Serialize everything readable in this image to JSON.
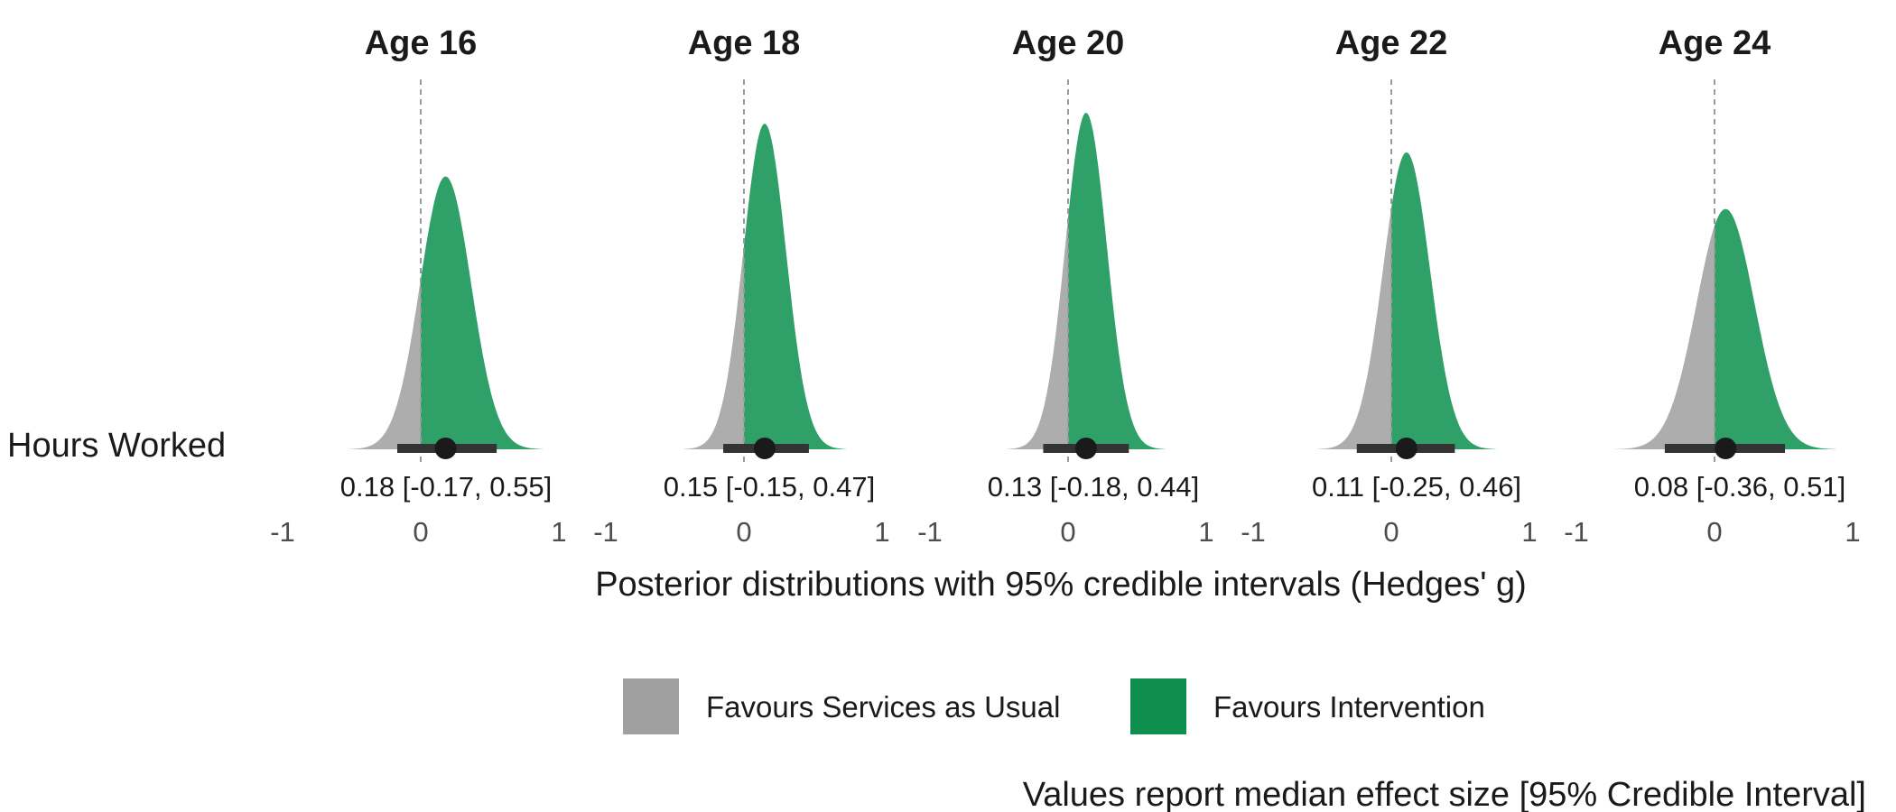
{
  "chart_data": {
    "type": "area",
    "facet_by": "age",
    "row_label": "Hours Worked",
    "x_title": "Posterior distributions with 95% credible intervals (Hedges' g)",
    "caption": "Values report median effect size [95% Credible Interval]",
    "xlim": [
      -1,
      1
    ],
    "x_ticks": [
      "-1",
      "0",
      "1"
    ],
    "reference_line": 0,
    "colors": {
      "services_as_usual": "#adadad",
      "intervention": "#2ea068",
      "interval": "#333333",
      "point": "#1a1a1a",
      "legend_grey": "#a0a0a0",
      "legend_green": "#0f8f4d"
    },
    "legend": [
      {
        "key": "services_as_usual",
        "label": "Favours Services as Usual"
      },
      {
        "key": "intervention",
        "label": "Favours Intervention"
      }
    ],
    "panels": [
      {
        "title": "Age 16",
        "median": 0.18,
        "lower": -0.17,
        "upper": 0.55,
        "sd": 0.185,
        "label": "0.18 [-0.17, 0.55]"
      },
      {
        "title": "Age 18",
        "median": 0.15,
        "lower": -0.15,
        "upper": 0.47,
        "sd": 0.155,
        "label": "0.15 [-0.15, 0.47]"
      },
      {
        "title": "Age 20",
        "median": 0.13,
        "lower": -0.18,
        "upper": 0.44,
        "sd": 0.15,
        "label": "0.13 [-0.18, 0.44]"
      },
      {
        "title": "Age 22",
        "median": 0.11,
        "lower": -0.25,
        "upper": 0.46,
        "sd": 0.17,
        "label": "0.11 [-0.25, 0.46]"
      },
      {
        "title": "Age 24",
        "median": 0.08,
        "lower": -0.36,
        "upper": 0.51,
        "sd": 0.21,
        "label": "0.08 [-0.36, 0.51]"
      }
    ]
  }
}
